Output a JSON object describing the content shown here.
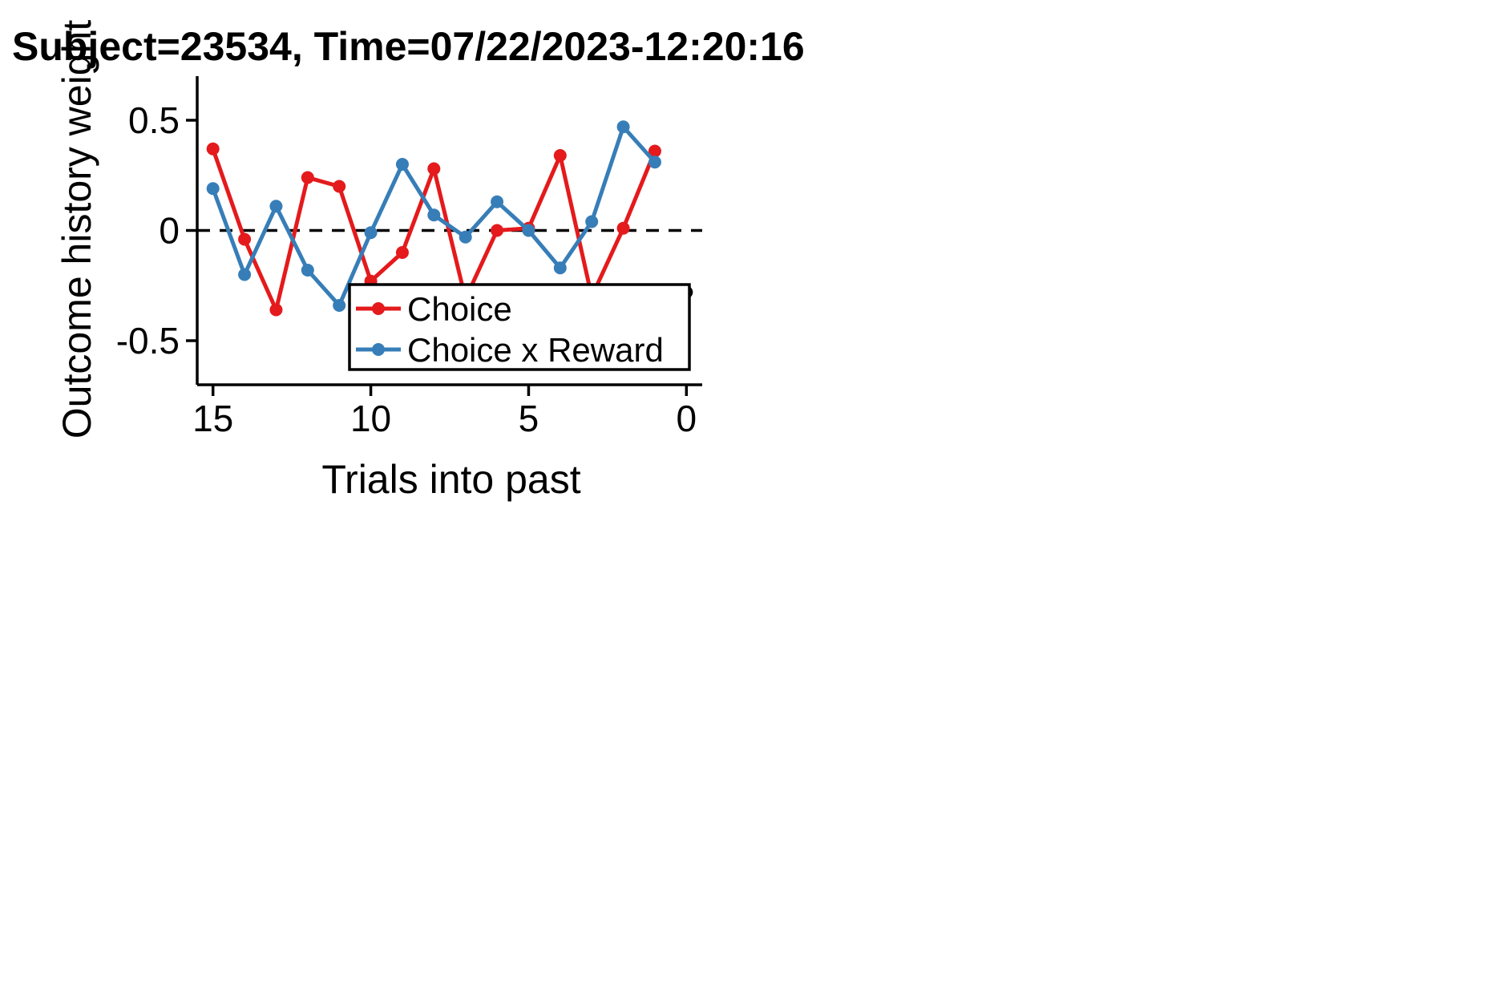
{
  "chart_data": {
    "type": "line",
    "title": "Subject=23534, Time=07/22/2023-12:20:16",
    "xlabel": "Trials into past",
    "ylabel": "Outcome history weight",
    "xlim": [
      15.5,
      -0.5
    ],
    "ylim": [
      -0.7,
      0.7
    ],
    "x_ticks": [
      15,
      10,
      5,
      0
    ],
    "x_tick_labels": [
      "15",
      "10",
      "5",
      "0"
    ],
    "y_ticks": [
      0.5,
      0,
      -0.5
    ],
    "y_tick_labels": [
      "0.5",
      "0",
      "-0.5"
    ],
    "reference_line": {
      "y": 0,
      "style": "dashed",
      "color": "#000000"
    },
    "grid": false,
    "legend_position": "lower-right",
    "series": [
      {
        "name": "Choice",
        "color": "#e41a1c",
        "x": [
          15,
          14,
          13,
          12,
          11,
          10,
          9,
          8,
          7,
          6,
          5,
          4,
          3,
          2,
          1
        ],
        "y": [
          0.37,
          -0.04,
          -0.36,
          0.24,
          0.2,
          -0.23,
          -0.1,
          0.28,
          -0.31,
          0.0,
          0.01,
          0.34,
          -0.3,
          0.01,
          0.36
        ]
      },
      {
        "name": "Choice x Reward",
        "color": "#377eb8",
        "x": [
          15,
          14,
          13,
          12,
          11,
          10,
          9,
          8,
          7,
          6,
          5,
          4,
          3,
          2,
          1
        ],
        "y": [
          0.19,
          -0.2,
          0.11,
          -0.18,
          -0.34,
          -0.01,
          0.3,
          0.07,
          -0.03,
          0.13,
          0.0,
          -0.17,
          0.04,
          0.47,
          0.31
        ]
      }
    ],
    "extra_points": [
      {
        "x": 0,
        "y": -0.28,
        "color": "#000000"
      }
    ]
  }
}
